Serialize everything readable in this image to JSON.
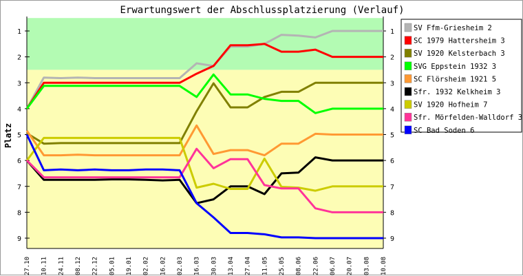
{
  "chart_data": {
    "type": "line",
    "title": "Erwartungswert der Abschlussplatzierung (Verlauf)",
    "xlabel": "",
    "ylabel": "Platz",
    "ylim": [
      0.5,
      9.4
    ],
    "y_ticks": [
      "1",
      "2",
      "3",
      "4",
      "5",
      "6",
      "7",
      "8",
      "9"
    ],
    "y_inverted": true,
    "zones": [
      {
        "from": 0.5,
        "to": 2.5,
        "color": "#b3fbb3"
      },
      {
        "from": 2.5,
        "to": 9.4,
        "color": "#fdfdb5"
      }
    ],
    "categories": [
      "27.10",
      "10.11",
      "24.11",
      "08.12",
      "22.12",
      "05.01",
      "19.01",
      "02.02",
      "16.02",
      "02.03",
      "16.03",
      "30.03",
      "13.04",
      "27.04",
      "11.05",
      "25.05",
      "08.06",
      "22.06",
      "06.07",
      "20.07",
      "03.08",
      "10.08"
    ],
    "legend_position": "right",
    "series": [
      {
        "name": "SV Ffm-Griesheim 2",
        "color": "#b4b4b4",
        "values": [
          4.0,
          2.8,
          2.82,
          2.8,
          2.82,
          2.82,
          2.82,
          2.82,
          2.82,
          2.82,
          2.25,
          2.35,
          1.6,
          1.6,
          1.5,
          1.15,
          1.18,
          1.25,
          1,
          1,
          1,
          1
        ]
      },
      {
        "name": "SC 1979 Hattersheim 3",
        "color": "#ff0000",
        "values": [
          4.0,
          3.0,
          3.0,
          3.0,
          3.0,
          3.0,
          3.0,
          3.0,
          3.0,
          3.0,
          2.65,
          2.35,
          1.55,
          1.55,
          1.5,
          1.8,
          1.8,
          1.72,
          2,
          2,
          2,
          2
        ]
      },
      {
        "name": "SV 1920 Kelsterbach 3",
        "color": "#808000",
        "values": [
          4.95,
          5.35,
          5.33,
          5.33,
          5.33,
          5.33,
          5.33,
          5.33,
          5.33,
          5.33,
          4.1,
          3.02,
          3.95,
          3.95,
          3.55,
          3.35,
          3.35,
          3.0,
          3,
          3,
          3,
          3
        ]
      },
      {
        "name": "SVG Eppstein 1932 3",
        "color": "#00ff00",
        "values": [
          4.0,
          3.12,
          3.12,
          3.12,
          3.12,
          3.12,
          3.12,
          3.12,
          3.12,
          3.12,
          3.55,
          2.68,
          3.45,
          3.45,
          3.62,
          3.7,
          3.7,
          4.17,
          4,
          4,
          4,
          4
        ]
      },
      {
        "name": "SC Flörsheim 1921 5",
        "color": "#ff9933",
        "values": [
          4.85,
          5.8,
          5.8,
          5.78,
          5.8,
          5.8,
          5.8,
          5.8,
          5.8,
          5.8,
          4.65,
          5.75,
          5.6,
          5.6,
          5.8,
          5.35,
          5.35,
          4.97,
          5,
          5,
          5,
          5
        ]
      },
      {
        "name": "Sfr. 1932 Kelkheim 3",
        "color": "#000000",
        "values": [
          6.0,
          6.75,
          6.75,
          6.75,
          6.75,
          6.73,
          6.73,
          6.75,
          6.77,
          6.75,
          7.65,
          7.5,
          7.0,
          7.0,
          7.3,
          6.5,
          6.47,
          5.88,
          6,
          6,
          6,
          6
        ]
      },
      {
        "name": "SV 1920 Hofheim 7",
        "color": "#cccc00",
        "values": [
          6.0,
          5.13,
          5.13,
          5.13,
          5.13,
          5.13,
          5.13,
          5.13,
          5.13,
          5.13,
          7.05,
          6.9,
          7.1,
          7.1,
          5.93,
          7.02,
          7.05,
          7.17,
          7,
          7,
          7,
          7
        ]
      },
      {
        "name": "Sfr. Mörfelden-Walldorf 3",
        "color": "#ff3399",
        "values": [
          6.0,
          6.65,
          6.65,
          6.65,
          6.65,
          6.65,
          6.65,
          6.65,
          6.65,
          6.65,
          5.55,
          6.3,
          5.95,
          5.95,
          6.95,
          7.08,
          7.08,
          7.85,
          8,
          8,
          8,
          8
        ]
      },
      {
        "name": "SC Bad Soden 6",
        "color": "#0000ff",
        "values": [
          5.0,
          6.38,
          6.35,
          6.38,
          6.35,
          6.38,
          6.38,
          6.35,
          6.35,
          6.38,
          7.65,
          8.2,
          8.8,
          8.8,
          8.85,
          8.97,
          8.97,
          9.0,
          9,
          9,
          9,
          9
        ]
      }
    ]
  }
}
